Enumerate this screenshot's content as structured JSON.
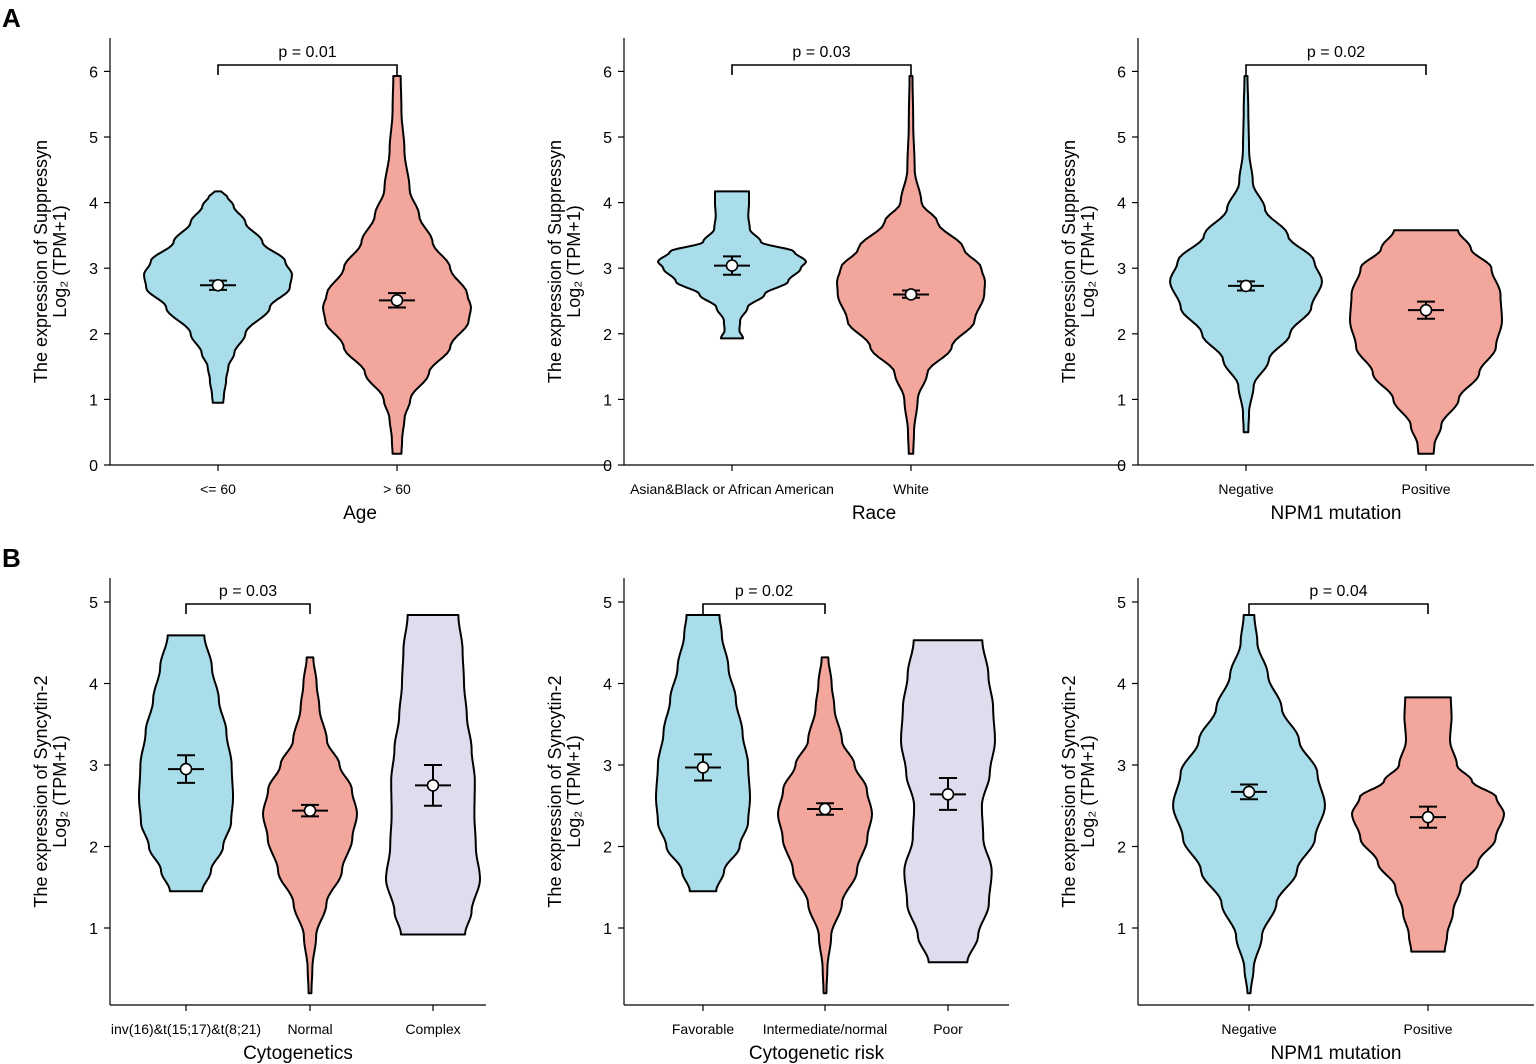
{
  "panel_labels": [
    "A",
    "B"
  ],
  "chart_data": [
    {
      "type": "violin",
      "panel": "A",
      "xlabel": "Age",
      "ylabel_line1": "The expression of Suppressyn",
      "ylabel_line2": "Log₂ (TPM+1)",
      "ylim": [
        0,
        6.5
      ],
      "yticks": [
        0,
        1,
        2,
        3,
        4,
        5,
        6
      ],
      "categories": [
        "<= 60",
        "> 60"
      ],
      "colors": [
        "#a8dde9",
        "#f2a69c"
      ],
      "series": [
        {
          "name": "<= 60",
          "mean": 2.74,
          "ci": [
            2.67,
            2.81
          ],
          "min": 0.95,
          "max": 4.17,
          "profile": [
            [
              0.95,
              0.07
            ],
            [
              1.05,
              0.08
            ],
            [
              1.3,
              0.11
            ],
            [
              1.5,
              0.14
            ],
            [
              1.7,
              0.22
            ],
            [
              2.0,
              0.37
            ],
            [
              2.4,
              0.7
            ],
            [
              2.7,
              0.97
            ],
            [
              2.9,
              1.0
            ],
            [
              3.1,
              0.91
            ],
            [
              3.4,
              0.6
            ],
            [
              3.7,
              0.37
            ],
            [
              3.95,
              0.21
            ],
            [
              4.1,
              0.12
            ],
            [
              4.17,
              0.04
            ]
          ]
        },
        {
          "name": "> 60",
          "mean": 2.51,
          "ci": [
            2.4,
            2.62
          ],
          "min": 0.17,
          "max": 5.93,
          "profile": [
            [
              0.17,
              0.06
            ],
            [
              0.4,
              0.07
            ],
            [
              0.7,
              0.1
            ],
            [
              1.0,
              0.18
            ],
            [
              1.4,
              0.43
            ],
            [
              1.8,
              0.72
            ],
            [
              2.2,
              0.97
            ],
            [
              2.4,
              1.0
            ],
            [
              2.6,
              0.95
            ],
            [
              3.0,
              0.72
            ],
            [
              3.4,
              0.48
            ],
            [
              3.8,
              0.3
            ],
            [
              4.2,
              0.17
            ],
            [
              4.8,
              0.1
            ],
            [
              5.4,
              0.06
            ],
            [
              5.93,
              0.05
            ]
          ]
        }
      ],
      "comparison": {
        "from": 0,
        "to": 1,
        "label": "p = 0.01"
      }
    },
    {
      "type": "violin",
      "panel": "A",
      "xlabel": "Race",
      "ylabel_line1": "The expression of Suppressyn",
      "ylabel_line2": "Log₂ (TPM+1)",
      "ylim": [
        0,
        6.5
      ],
      "yticks": [
        0,
        1,
        2,
        3,
        4,
        5,
        6
      ],
      "categories": [
        "Asian&Black or African American",
        "White"
      ],
      "colors": [
        "#a8dde9",
        "#f2a69c"
      ],
      "series": [
        {
          "name": "Asian&Black or African American",
          "mean": 3.04,
          "ci": [
            2.9,
            3.18
          ],
          "min": 1.93,
          "max": 4.17,
          "profile": [
            [
              1.93,
              0.15
            ],
            [
              2.05,
              0.1
            ],
            [
              2.2,
              0.11
            ],
            [
              2.4,
              0.21
            ],
            [
              2.6,
              0.44
            ],
            [
              2.8,
              0.76
            ],
            [
              3.0,
              0.93
            ],
            [
              3.1,
              1.0
            ],
            [
              3.25,
              0.84
            ],
            [
              3.4,
              0.39
            ],
            [
              3.6,
              0.24
            ],
            [
              3.8,
              0.22
            ],
            [
              4.0,
              0.23
            ],
            [
              4.17,
              0.23
            ]
          ]
        },
        {
          "name": "White",
          "mean": 2.6,
          "ci": [
            2.55,
            2.66
          ],
          "min": 0.17,
          "max": 5.93,
          "profile": [
            [
              0.17,
              0.03
            ],
            [
              0.5,
              0.04
            ],
            [
              1.0,
              0.09
            ],
            [
              1.4,
              0.22
            ],
            [
              1.8,
              0.55
            ],
            [
              2.2,
              0.86
            ],
            [
              2.6,
              0.99
            ],
            [
              2.8,
              1.0
            ],
            [
              3.0,
              0.95
            ],
            [
              3.3,
              0.71
            ],
            [
              3.7,
              0.36
            ],
            [
              4.0,
              0.14
            ],
            [
              4.5,
              0.05
            ],
            [
              5.2,
              0.03
            ],
            [
              5.93,
              0.02
            ]
          ]
        }
      ],
      "comparison": {
        "from": 0,
        "to": 1,
        "label": "p = 0.03"
      }
    },
    {
      "type": "violin",
      "panel": "A",
      "xlabel": "NPM1 mutation",
      "ylabel_line1": "The expression of Suppressyn",
      "ylabel_line2": "Log₂ (TPM+1)",
      "ylim": [
        0,
        6.5
      ],
      "yticks": [
        0,
        1,
        2,
        3,
        4,
        5,
        6
      ],
      "categories": [
        "Negative",
        "Positive"
      ],
      "colors": [
        "#a8dde9",
        "#f2a69c"
      ],
      "series": [
        {
          "name": "Negative",
          "mean": 2.73,
          "ci": [
            2.66,
            2.8
          ],
          "min": 0.5,
          "max": 5.93,
          "profile": [
            [
              0.5,
              0.03
            ],
            [
              0.8,
              0.04
            ],
            [
              1.2,
              0.1
            ],
            [
              1.6,
              0.3
            ],
            [
              2.0,
              0.58
            ],
            [
              2.4,
              0.86
            ],
            [
              2.8,
              1.0
            ],
            [
              3.1,
              0.9
            ],
            [
              3.5,
              0.55
            ],
            [
              3.9,
              0.25
            ],
            [
              4.3,
              0.09
            ],
            [
              4.8,
              0.04
            ],
            [
              5.4,
              0.03
            ],
            [
              5.93,
              0.02
            ]
          ]
        },
        {
          "name": "Positive",
          "mean": 2.36,
          "ci": [
            2.23,
            2.49
          ],
          "min": 0.17,
          "max": 3.58,
          "profile": [
            [
              0.17,
              0.1
            ],
            [
              0.3,
              0.11
            ],
            [
              0.6,
              0.2
            ],
            [
              1.0,
              0.43
            ],
            [
              1.4,
              0.7
            ],
            [
              1.8,
              0.92
            ],
            [
              2.2,
              1.0
            ],
            [
              2.6,
              0.98
            ],
            [
              3.0,
              0.86
            ],
            [
              3.3,
              0.59
            ],
            [
              3.58,
              0.42
            ]
          ]
        }
      ],
      "comparison": {
        "from": 0,
        "to": 1,
        "label": "p = 0.02"
      }
    },
    {
      "type": "violin",
      "panel": "B",
      "xlabel": "Cytogenetics",
      "ylabel_line1": "The expression of Syncytin-2",
      "ylabel_line2": "Log₂ (TPM+1)",
      "ylim": [
        0,
        5.2
      ],
      "yticks": [
        1,
        2,
        3,
        4,
        5
      ],
      "categories": [
        "inv(16)&t(15;17)&t(8;21)",
        "Normal",
        "Complex"
      ],
      "colors": [
        "#a8dde9",
        "#f2a69c",
        "#dfdcee"
      ],
      "series": [
        {
          "name": "inv(16)&t(15;17)&t(8;21)",
          "mean": 2.95,
          "ci": [
            2.78,
            3.12
          ],
          "min": 1.45,
          "max": 4.59,
          "profile": [
            [
              1.45,
              0.34
            ],
            [
              1.7,
              0.53
            ],
            [
              2.0,
              0.79
            ],
            [
              2.3,
              0.96
            ],
            [
              2.6,
              1.0
            ],
            [
              3.0,
              0.97
            ],
            [
              3.4,
              0.86
            ],
            [
              3.8,
              0.7
            ],
            [
              4.2,
              0.55
            ],
            [
              4.59,
              0.39
            ]
          ]
        },
        {
          "name": "Normal",
          "mean": 2.44,
          "ci": [
            2.37,
            2.51
          ],
          "min": 0.2,
          "max": 4.32,
          "profile": [
            [
              0.2,
              0.03
            ],
            [
              0.5,
              0.05
            ],
            [
              0.9,
              0.13
            ],
            [
              1.3,
              0.35
            ],
            [
              1.7,
              0.68
            ],
            [
              2.1,
              0.9
            ],
            [
              2.4,
              1.0
            ],
            [
              2.7,
              0.89
            ],
            [
              3.0,
              0.63
            ],
            [
              3.3,
              0.36
            ],
            [
              3.7,
              0.2
            ],
            [
              4.0,
              0.14
            ],
            [
              4.32,
              0.07
            ]
          ]
        },
        {
          "name": "Complex",
          "mean": 2.75,
          "ci": [
            2.5,
            3.0
          ],
          "min": 0.92,
          "max": 4.84,
          "profile": [
            [
              0.92,
              0.68
            ],
            [
              1.2,
              0.82
            ],
            [
              1.6,
              1.0
            ],
            [
              2.0,
              0.91
            ],
            [
              2.4,
              0.88
            ],
            [
              2.8,
              0.89
            ],
            [
              3.2,
              0.82
            ],
            [
              3.6,
              0.72
            ],
            [
              4.0,
              0.66
            ],
            [
              4.4,
              0.63
            ],
            [
              4.84,
              0.54
            ]
          ]
        }
      ],
      "comparison": {
        "from": 0,
        "to": 1,
        "label": "p = 0.03"
      }
    },
    {
      "type": "violin",
      "panel": "B",
      "xlabel": "Cytogenetic risk",
      "ylabel_line1": "The expression of Syncytin-2",
      "ylabel_line2": "Log₂ (TPM+1)",
      "ylim": [
        0,
        5.2
      ],
      "yticks": [
        1,
        2,
        3,
        4,
        5
      ],
      "categories": [
        "Favorable",
        "Intermediate/normal",
        "Poor"
      ],
      "colors": [
        "#a8dde9",
        "#f2a69c",
        "#dfdcee"
      ],
      "series": [
        {
          "name": "Favorable",
          "mean": 2.97,
          "ci": [
            2.81,
            3.13
          ],
          "min": 1.45,
          "max": 4.84,
          "profile": [
            [
              1.45,
              0.28
            ],
            [
              1.7,
              0.45
            ],
            [
              2.0,
              0.78
            ],
            [
              2.3,
              0.96
            ],
            [
              2.6,
              1.0
            ],
            [
              3.0,
              0.96
            ],
            [
              3.4,
              0.84
            ],
            [
              3.8,
              0.7
            ],
            [
              4.2,
              0.54
            ],
            [
              4.6,
              0.4
            ],
            [
              4.84,
              0.35
            ]
          ]
        },
        {
          "name": "Intermediate/normal",
          "mean": 2.46,
          "ci": [
            2.39,
            2.53
          ],
          "min": 0.2,
          "max": 4.32,
          "profile": [
            [
              0.2,
              0.03
            ],
            [
              0.5,
              0.05
            ],
            [
              0.9,
              0.13
            ],
            [
              1.3,
              0.36
            ],
            [
              1.7,
              0.68
            ],
            [
              2.1,
              0.9
            ],
            [
              2.4,
              1.0
            ],
            [
              2.7,
              0.89
            ],
            [
              3.0,
              0.63
            ],
            [
              3.3,
              0.36
            ],
            [
              3.7,
              0.2
            ],
            [
              4.0,
              0.14
            ],
            [
              4.32,
              0.07
            ]
          ]
        },
        {
          "name": "Poor",
          "mean": 2.64,
          "ci": [
            2.45,
            2.84
          ],
          "min": 0.58,
          "max": 4.53,
          "profile": [
            [
              0.58,
              0.41
            ],
            [
              0.9,
              0.64
            ],
            [
              1.3,
              0.87
            ],
            [
              1.7,
              0.93
            ],
            [
              2.1,
              0.75
            ],
            [
              2.5,
              0.72
            ],
            [
              2.9,
              0.89
            ],
            [
              3.3,
              1.0
            ],
            [
              3.7,
              0.96
            ],
            [
              4.1,
              0.86
            ],
            [
              4.53,
              0.73
            ]
          ]
        }
      ],
      "comparison": {
        "from": 0,
        "to": 1,
        "label": "p = 0.02"
      }
    },
    {
      "type": "violin",
      "panel": "B",
      "xlabel": "NPM1 mutation",
      "ylabel_line1": "The expression of Syncytin-2",
      "ylabel_line2": "Log₂ (TPM+1)",
      "ylim": [
        0,
        5.2
      ],
      "yticks": [
        1,
        2,
        3,
        4,
        5
      ],
      "categories": [
        "Negative",
        "Positive"
      ],
      "colors": [
        "#a8dde9",
        "#f2a69c"
      ],
      "series": [
        {
          "name": "Negative",
          "mean": 2.67,
          "ci": [
            2.58,
            2.76
          ],
          "min": 0.2,
          "max": 4.84,
          "profile": [
            [
              0.2,
              0.02
            ],
            [
              0.5,
              0.06
            ],
            [
              0.9,
              0.17
            ],
            [
              1.3,
              0.36
            ],
            [
              1.7,
              0.63
            ],
            [
              2.1,
              0.87
            ],
            [
              2.5,
              1.0
            ],
            [
              2.9,
              0.9
            ],
            [
              3.3,
              0.66
            ],
            [
              3.7,
              0.43
            ],
            [
              4.1,
              0.25
            ],
            [
              4.5,
              0.11
            ],
            [
              4.84,
              0.07
            ]
          ]
        },
        {
          "name": "Positive",
          "mean": 2.36,
          "ci": [
            2.23,
            2.49
          ],
          "min": 0.71,
          "max": 3.83,
          "profile": [
            [
              0.71,
              0.22
            ],
            [
              0.9,
              0.25
            ],
            [
              1.2,
              0.33
            ],
            [
              1.5,
              0.43
            ],
            [
              1.8,
              0.66
            ],
            [
              2.1,
              0.89
            ],
            [
              2.4,
              1.0
            ],
            [
              2.6,
              0.9
            ],
            [
              2.8,
              0.58
            ],
            [
              3.0,
              0.38
            ],
            [
              3.3,
              0.29
            ],
            [
              3.6,
              0.31
            ],
            [
              3.83,
              0.3
            ]
          ]
        }
      ],
      "comparison": {
        "from": 0,
        "to": 1,
        "label": "p = 0.04"
      }
    }
  ]
}
